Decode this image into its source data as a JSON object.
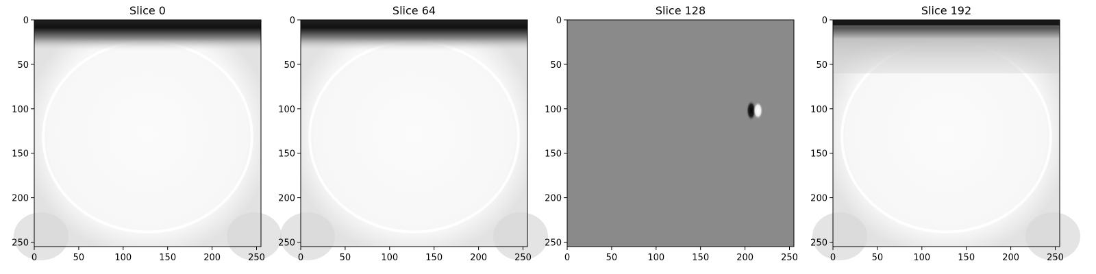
{
  "chart_data": [
    {
      "type": "heatmap",
      "title": "Slice 0",
      "image": "mostly-white",
      "xlim": [
        0,
        255
      ],
      "ylim_inverted": [
        255,
        0
      ],
      "xticks": [
        0,
        50,
        100,
        150,
        200,
        250
      ],
      "yticks": [
        0,
        50,
        100,
        150,
        200,
        250
      ],
      "colormap": "gray",
      "grid": false
    },
    {
      "type": "heatmap",
      "title": "Slice 64",
      "image": "mostly-white",
      "xlim": [
        0,
        255
      ],
      "ylim_inverted": [
        255,
        0
      ],
      "xticks": [
        0,
        50,
        100,
        150,
        200,
        250
      ],
      "yticks": [
        0,
        50,
        100,
        150,
        200,
        250
      ],
      "colormap": "gray",
      "grid": false
    },
    {
      "type": "heatmap",
      "title": "Slice 128",
      "image": "uniform-gray-with-spot",
      "spot": {
        "x": 210,
        "y": 102
      },
      "xlim": [
        0,
        255
      ],
      "ylim_inverted": [
        255,
        0
      ],
      "xticks": [
        0,
        50,
        100,
        150,
        200,
        250
      ],
      "yticks": [
        0,
        50,
        100,
        150,
        200,
        250
      ],
      "colormap": "gray",
      "grid": false
    },
    {
      "type": "heatmap",
      "title": "Slice 192",
      "image": "mostly-white",
      "xlim": [
        0,
        255
      ],
      "ylim_inverted": [
        255,
        0
      ],
      "xticks": [
        0,
        50,
        100,
        150,
        200,
        250
      ],
      "yticks": [
        0,
        50,
        100,
        150,
        200,
        250
      ],
      "colormap": "gray",
      "grid": false
    }
  ]
}
